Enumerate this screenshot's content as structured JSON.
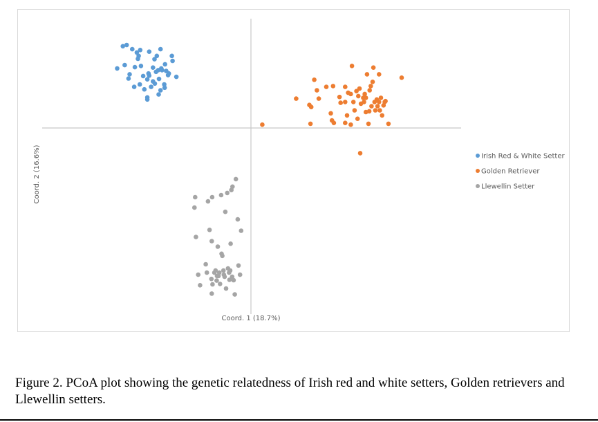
{
  "figure": {
    "caption": "Figure 2. PCoA plot showing the genetic relatedness of Irish red and white setters, Golden retrievers and Llewellin setters."
  },
  "chart_data": {
    "type": "scatter",
    "title": "",
    "xlabel": "Coord. 1 (18.7%)",
    "ylabel": "Coord. 2 (16.6%)",
    "xlim": [
      -0.5,
      0.5
    ],
    "ylim": [
      -0.5,
      0.35
    ],
    "grid": false,
    "legend_position": "right",
    "series": [
      {
        "name": "Irish Red & White Setter",
        "color": "#5b9bd5",
        "points": [
          [
            -0.34,
            0.195
          ],
          [
            -0.33,
            0.198
          ],
          [
            -0.315,
            0.188
          ],
          [
            -0.303,
            0.18
          ],
          [
            -0.294,
            0.186
          ],
          [
            -0.27,
            0.182
          ],
          [
            -0.24,
            0.188
          ],
          [
            -0.3,
            0.165
          ],
          [
            -0.298,
            0.172
          ],
          [
            -0.25,
            0.172
          ],
          [
            -0.256,
            0.164
          ],
          [
            -0.208,
            0.16
          ],
          [
            -0.21,
            0.172
          ],
          [
            -0.355,
            0.142
          ],
          [
            -0.335,
            0.15
          ],
          [
            -0.308,
            0.145
          ],
          [
            -0.292,
            0.148
          ],
          [
            -0.26,
            0.144
          ],
          [
            -0.238,
            0.142
          ],
          [
            -0.228,
            0.152
          ],
          [
            -0.225,
            0.136
          ],
          [
            -0.322,
            0.128
          ],
          [
            -0.286,
            0.124
          ],
          [
            -0.272,
            0.13
          ],
          [
            -0.252,
            0.134
          ],
          [
            -0.246,
            0.138
          ],
          [
            -0.236,
            0.138
          ],
          [
            -0.22,
            0.126
          ],
          [
            -0.218,
            0.13
          ],
          [
            -0.198,
            0.122
          ],
          [
            -0.325,
            0.118
          ],
          [
            -0.275,
            0.116
          ],
          [
            -0.27,
            0.125
          ],
          [
            -0.26,
            0.111
          ],
          [
            -0.244,
            0.117
          ],
          [
            -0.23,
            0.104
          ],
          [
            -0.31,
            0.098
          ],
          [
            -0.295,
            0.104
          ],
          [
            -0.283,
            0.092
          ],
          [
            -0.265,
            0.098
          ],
          [
            -0.255,
            0.106
          ],
          [
            -0.24,
            0.09
          ],
          [
            -0.229,
            0.096
          ],
          [
            -0.275,
            0.068
          ],
          [
            -0.275,
            0.073
          ],
          [
            -0.245,
            0.08
          ]
        ]
      },
      {
        "name": "Golden Retriever",
        "color": "#ed7d31",
        "points": [
          [
            0.03,
            0.008
          ],
          [
            0.12,
            0.07
          ],
          [
            0.155,
            0.055
          ],
          [
            0.158,
            0.01
          ],
          [
            0.16,
            0.05
          ],
          [
            0.168,
            0.115
          ],
          [
            0.175,
            0.09
          ],
          [
            0.18,
            0.07
          ],
          [
            0.2,
            0.098
          ],
          [
            0.212,
            0.035
          ],
          [
            0.215,
            0.018
          ],
          [
            0.218,
            0.1
          ],
          [
            0.22,
            0.012
          ],
          [
            0.235,
            0.074
          ],
          [
            0.238,
            0.06
          ],
          [
            0.25,
            0.098
          ],
          [
            0.25,
            0.012
          ],
          [
            0.25,
            0.062
          ],
          [
            0.255,
            0.03
          ],
          [
            0.258,
            0.084
          ],
          [
            0.265,
            0.008
          ],
          [
            0.265,
            0.081
          ],
          [
            0.268,
            0.148
          ],
          [
            0.272,
            0.062
          ],
          [
            0.275,
            0.042
          ],
          [
            0.28,
            0.088
          ],
          [
            0.283,
            0.022
          ],
          [
            0.285,
            0.076
          ],
          [
            0.288,
            0.094
          ],
          [
            0.29,
            -0.06
          ],
          [
            0.292,
            0.058
          ],
          [
            0.298,
            0.072
          ],
          [
            0.3,
            0.062
          ],
          [
            0.302,
            0.081
          ],
          [
            0.305,
            0.072
          ],
          [
            0.305,
            0.038
          ],
          [
            0.308,
            0.128
          ],
          [
            0.312,
            0.01
          ],
          [
            0.314,
            0.04
          ],
          [
            0.315,
            0.09
          ],
          [
            0.318,
            0.1
          ],
          [
            0.32,
            0.052
          ],
          [
            0.323,
            0.11
          ],
          [
            0.325,
            0.144
          ],
          [
            0.328,
            0.062
          ],
          [
            0.33,
            0.042
          ],
          [
            0.334,
            0.068
          ],
          [
            0.336,
            0.052
          ],
          [
            0.34,
            0.062
          ],
          [
            0.34,
            0.128
          ],
          [
            0.342,
            0.042
          ],
          [
            0.345,
            0.072
          ],
          [
            0.348,
            0.03
          ],
          [
            0.352,
            0.054
          ],
          [
            0.355,
            0.062
          ],
          [
            0.357,
            0.064
          ],
          [
            0.365,
            0.01
          ],
          [
            0.4,
            0.12
          ]
        ]
      },
      {
        "name": "Llewellin Setter",
        "color": "#a5a5a5",
        "points": [
          [
            -0.15,
            -0.19
          ],
          [
            -0.148,
            -0.165
          ],
          [
            -0.146,
            -0.26
          ],
          [
            -0.14,
            -0.35
          ],
          [
            -0.135,
            -0.375
          ],
          [
            -0.12,
            -0.325
          ],
          [
            -0.117,
            -0.345
          ],
          [
            -0.114,
            -0.175
          ],
          [
            -0.11,
            -0.243
          ],
          [
            -0.105,
            -0.36
          ],
          [
            -0.104,
            -0.395
          ],
          [
            -0.104,
            -0.27
          ],
          [
            -0.103,
            -0.165
          ],
          [
            -0.102,
            -0.373
          ],
          [
            -0.097,
            -0.345
          ],
          [
            -0.094,
            -0.34
          ],
          [
            -0.091,
            -0.364
          ],
          [
            -0.09,
            -0.353
          ],
          [
            -0.088,
            -0.283
          ],
          [
            -0.086,
            -0.353
          ],
          [
            -0.084,
            -0.345
          ],
          [
            -0.082,
            -0.372
          ],
          [
            -0.079,
            -0.16
          ],
          [
            -0.078,
            -0.3
          ],
          [
            -0.076,
            -0.305
          ],
          [
            -0.073,
            -0.34
          ],
          [
            -0.072,
            -0.35
          ],
          [
            -0.07,
            -0.355
          ],
          [
            -0.068,
            -0.2
          ],
          [
            -0.066,
            -0.383
          ],
          [
            -0.063,
            -0.155
          ],
          [
            -0.061,
            -0.335
          ],
          [
            -0.058,
            -0.345
          ],
          [
            -0.057,
            -0.362
          ],
          [
            -0.055,
            -0.34
          ],
          [
            -0.054,
            -0.276
          ],
          [
            -0.052,
            -0.148
          ],
          [
            -0.05,
            -0.355
          ],
          [
            -0.049,
            -0.14
          ],
          [
            -0.046,
            -0.363
          ],
          [
            -0.043,
            -0.397
          ],
          [
            -0.04,
            -0.122
          ],
          [
            -0.035,
            -0.218
          ],
          [
            -0.033,
            -0.328
          ],
          [
            -0.029,
            -0.35
          ],
          [
            -0.026,
            -0.245
          ]
        ]
      }
    ]
  }
}
